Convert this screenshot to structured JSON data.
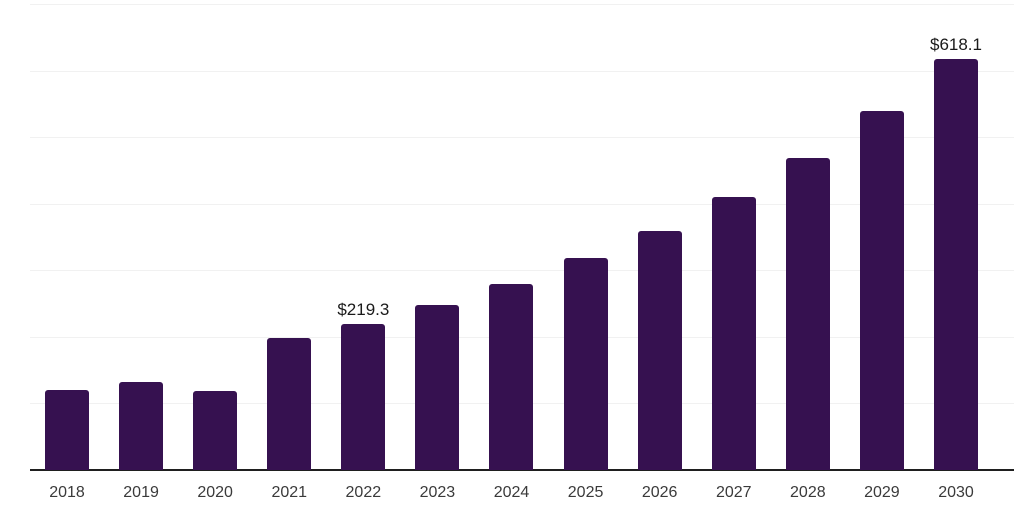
{
  "chart_data": {
    "type": "bar",
    "title": "",
    "xlabel": "",
    "ylabel": "",
    "categories": [
      "2018",
      "2019",
      "2020",
      "2021",
      "2022",
      "2023",
      "2024",
      "2025",
      "2026",
      "2027",
      "2028",
      "2029",
      "2030"
    ],
    "values": [
      120.2,
      132.2,
      118.7,
      198.3,
      219.3,
      248.6,
      279.4,
      318.5,
      359.0,
      410.1,
      468.7,
      540.0,
      618.1
    ],
    "data_labels": [
      "",
      "",
      "",
      "",
      "$219.3",
      "",
      "",
      "",
      "",
      "",
      "",
      "",
      "$618.1"
    ],
    "ylim": [
      0,
      700
    ],
    "gridline_step": 100,
    "grid": true,
    "legend_position": "none",
    "y_tick_labels_visible": false
  },
  "colors": {
    "background": "#FFFFFF",
    "bar": "#361150",
    "gridline": "#F1F1F1",
    "axis": "#1F1F1F",
    "tick_label": "#3A3A3A",
    "value_label": "#1A1A1A"
  }
}
